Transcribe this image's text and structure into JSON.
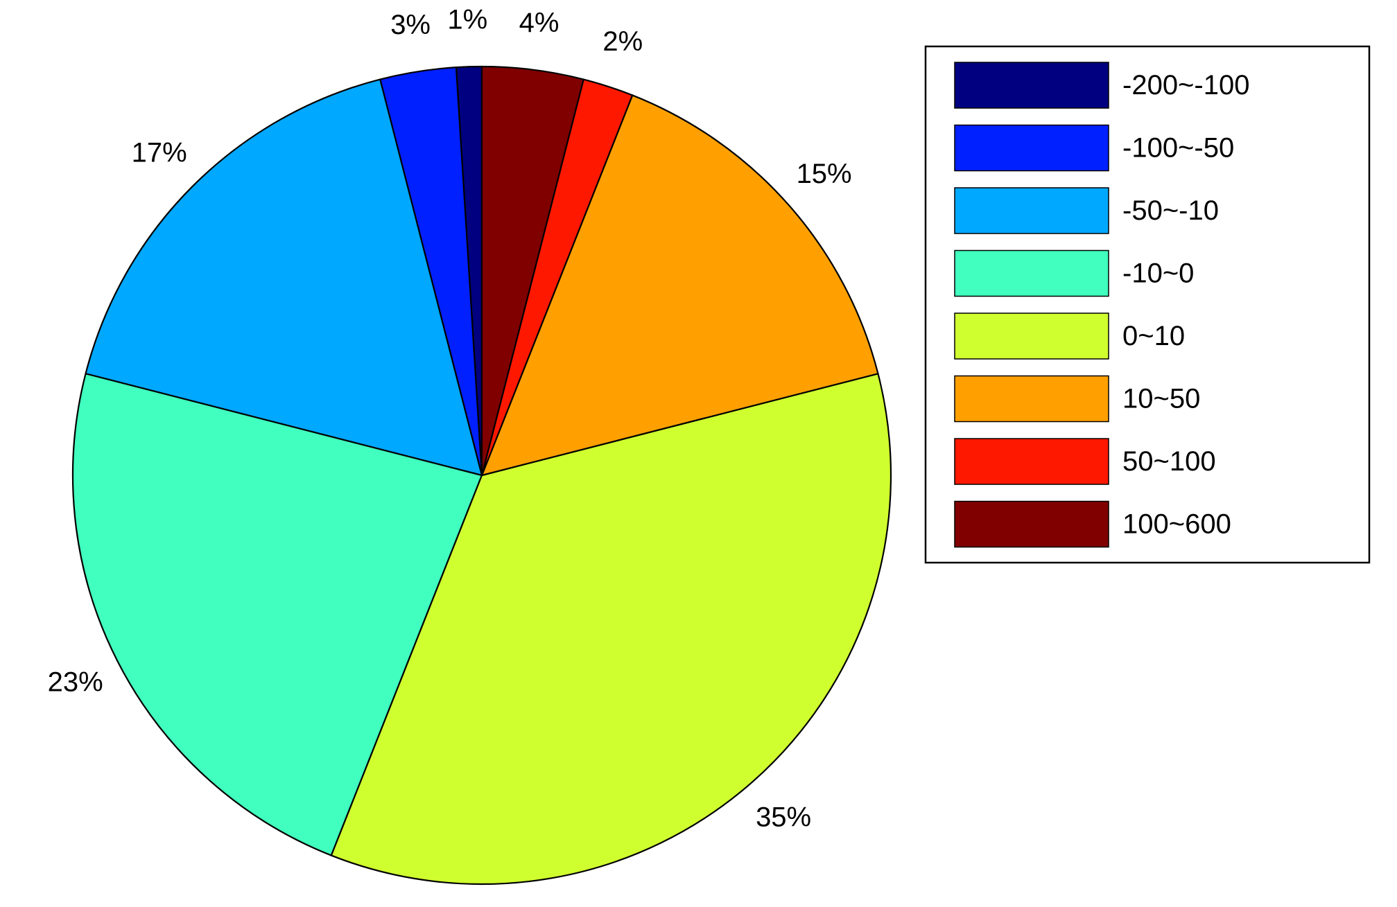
{
  "chart_data": {
    "type": "pie",
    "title": "",
    "slices": [
      {
        "label": "-200~-100",
        "value": 1,
        "pct_label": "1%",
        "color": "#000080"
      },
      {
        "label": "-100~-50",
        "value": 3,
        "pct_label": "3%",
        "color": "#0020FF"
      },
      {
        "label": "-50~-10",
        "value": 17,
        "pct_label": "17%",
        "color": "#00A8FF"
      },
      {
        "label": "-10~0",
        "value": 23,
        "pct_label": "23%",
        "color": "#40FFBF"
      },
      {
        "label": "0~10",
        "value": 35,
        "pct_label": "35%",
        "color": "#D0FF30"
      },
      {
        "label": "10~50",
        "value": 15,
        "pct_label": "15%",
        "color": "#FFA000"
      },
      {
        "label": "50~100",
        "value": 2,
        "pct_label": "2%",
        "color": "#FF1800"
      },
      {
        "label": "100~600",
        "value": 4,
        "pct_label": "4%",
        "color": "#800000"
      }
    ],
    "direction": "counterclockwise-from-top",
    "legend": {
      "placement": "top-right",
      "entries": [
        "-200~-100",
        "-100~-50",
        "-50~-10",
        "-10~0",
        "0~10",
        "10~50",
        "50~100",
        "100~600"
      ]
    }
  }
}
